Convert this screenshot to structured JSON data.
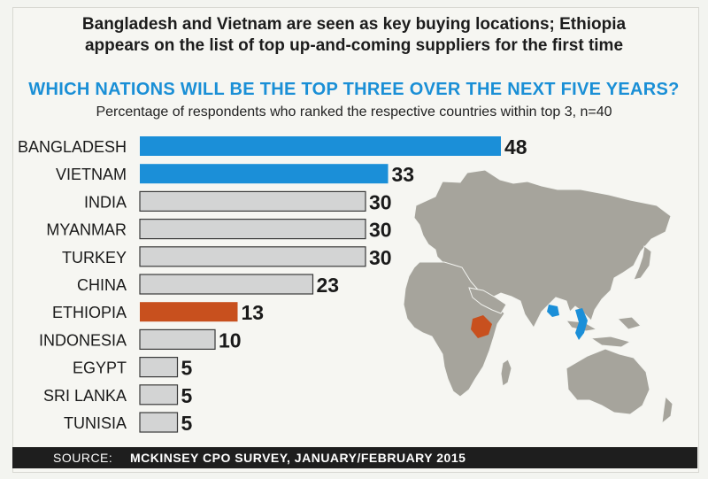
{
  "header": {
    "title_line1": "Bangladesh and Vietnam are seen as key buying locations; Ethiopia",
    "title_line2": "appears on the list of top up-and-coming suppliers for the first time",
    "subtitle": "WHICH NATIONS WILL BE THE TOP THREE OVER THE NEXT FIVE YEARS?",
    "note": "Percentage of respondents who ranked the respective countries within top 3, n=40"
  },
  "footer": {
    "source_label": "SOURCE:",
    "source_text": "MCKINSEY CPO SURVEY, JANUARY/FEBRUARY 2015"
  },
  "colors": {
    "highlight_blue": "#1b8fd8",
    "highlight_orange": "#c8501e",
    "default_bar": "#d3d4d4",
    "map_land": "#a6a49c"
  },
  "chart_data": {
    "type": "bar",
    "orientation": "horizontal",
    "categories": [
      "BANGLADESH",
      "VIETNAM",
      "INDIA",
      "MYANMAR",
      "TURKEY",
      "CHINA",
      "ETHIOPIA",
      "INDONESIA",
      "EGYPT",
      "SRI LANKA",
      "TUNISIA"
    ],
    "values": [
      48,
      33,
      30,
      30,
      30,
      23,
      13,
      10,
      5,
      5,
      5
    ],
    "bar_colors": [
      "blue",
      "blue",
      "grey",
      "grey",
      "grey",
      "grey",
      "orange",
      "grey",
      "grey",
      "grey",
      "grey"
    ],
    "xlim": [
      0,
      48
    ],
    "grid": false,
    "background": "world map"
  }
}
